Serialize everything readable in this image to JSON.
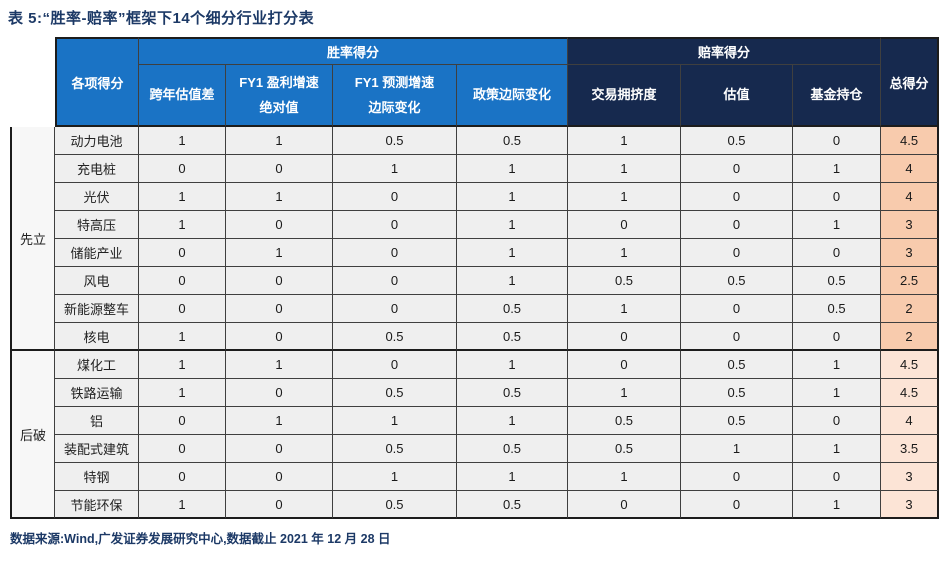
{
  "title": "表 5:“胜率-赔率”框架下14个细分行业打分表",
  "source_note": "数据来源:Wind,广发证券发展研究中心,数据截止 2021 年 12 月 28 日",
  "colors": {
    "header_blue": "#1a73c5",
    "header_navy": "#16294e",
    "cell_bg": "#efefef",
    "cat_bg": "#f7f7f7",
    "total_bg_group1": "#f8cbad",
    "total_bg_group2": "#fce4d6",
    "title_navy": "#1c3966",
    "grid": "#3f3f3f",
    "grid_dark": "#1c1c1c"
  },
  "table": {
    "corner_header": "各项得分",
    "group_headers": [
      "胜率得分",
      "赔率得分"
    ],
    "total_header": "总得分",
    "sub_headers": [
      "跨年估值差",
      "FY1 盈利增速\n绝对值",
      "FY1 预测增速\n边际变化",
      "政策边际变化",
      "交易拥挤度",
      "估值",
      "基金持仓"
    ],
    "groups": [
      {
        "category": "先立",
        "rows": [
          {
            "name": "动力电池",
            "scores": [
              1,
              1,
              0.5,
              0.5,
              1,
              0.5,
              0
            ],
            "total": 4.5
          },
          {
            "name": "充电桩",
            "scores": [
              0,
              0,
              1,
              1,
              1,
              0,
              1
            ],
            "total": 4
          },
          {
            "name": "光伏",
            "scores": [
              1,
              1,
              0,
              1,
              1,
              0,
              0
            ],
            "total": 4
          },
          {
            "name": "特高压",
            "scores": [
              1,
              0,
              0,
              1,
              0,
              0,
              1
            ],
            "total": 3
          },
          {
            "name": "储能产业",
            "scores": [
              0,
              1,
              0,
              1,
              1,
              0,
              0
            ],
            "total": 3
          },
          {
            "name": "风电",
            "scores": [
              0,
              0,
              0,
              1,
              0.5,
              0.5,
              0.5
            ],
            "total": 2.5
          },
          {
            "name": "新能源整车",
            "scores": [
              0,
              0,
              0,
              0.5,
              1,
              0,
              0.5
            ],
            "total": 2
          },
          {
            "name": "核电",
            "scores": [
              1,
              0,
              0.5,
              0.5,
              0,
              0,
              0
            ],
            "total": 2
          }
        ]
      },
      {
        "category": "后破",
        "rows": [
          {
            "name": "煤化工",
            "scores": [
              1,
              1,
              0,
              1,
              0,
              0.5,
              1
            ],
            "total": 4.5
          },
          {
            "name": "铁路运输",
            "scores": [
              1,
              0,
              0.5,
              0.5,
              1,
              0.5,
              1
            ],
            "total": 4.5
          },
          {
            "name": "铝",
            "scores": [
              0,
              1,
              1,
              1,
              0.5,
              0.5,
              0
            ],
            "total": 4
          },
          {
            "name": "装配式建筑",
            "scores": [
              0,
              0,
              0.5,
              0.5,
              0.5,
              1,
              1
            ],
            "total": 3.5
          },
          {
            "name": "特钢",
            "scores": [
              0,
              0,
              1,
              1,
              1,
              0,
              0
            ],
            "total": 3
          },
          {
            "name": "节能环保",
            "scores": [
              1,
              0,
              0.5,
              0.5,
              0,
              0,
              1
            ],
            "total": 3
          }
        ]
      }
    ]
  }
}
